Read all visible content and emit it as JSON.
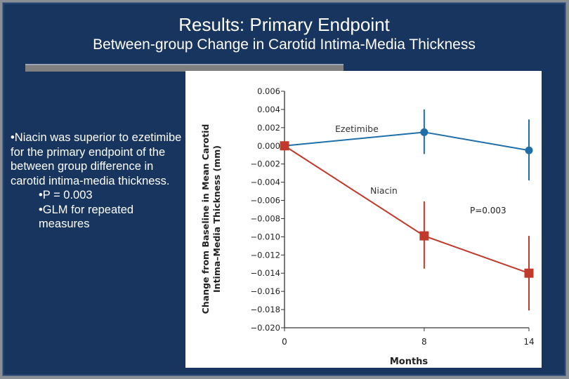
{
  "slide": {
    "title": "Results: Primary Endpoint",
    "subtitle": "Between-group Change in Carotid Intima-Media Thickness",
    "bullets": [
      "•Niacin was superior to ezetimibe for the primary endpoint of the between group difference in carotid intima-media thickness."
    ],
    "sub_bullets": [
      "•P = 0.003",
      "•GLM for repeated measures"
    ]
  },
  "chart_data": {
    "type": "line",
    "title": "",
    "xlabel": "Months",
    "ylabel_lines": [
      "Change from Baseline in Mean Carotid",
      "Intima–Media Thickness (mm)"
    ],
    "x": [
      0,
      8,
      14
    ],
    "x_ticks": [
      "0",
      "8",
      "14"
    ],
    "ylim": [
      -0.02,
      0.006
    ],
    "y_ticks": [
      "0.006",
      "0.004",
      "0.002",
      "0.000",
      "−0.002",
      "−0.004",
      "−0.006",
      "−0.008",
      "−0.010",
      "−0.012",
      "−0.014",
      "−0.016",
      "−0.018",
      "−0.020"
    ],
    "y_tick_values": [
      0.006,
      0.004,
      0.002,
      0,
      -0.002,
      -0.004,
      -0.006,
      -0.008,
      -0.01,
      -0.012,
      -0.014,
      -0.016,
      -0.018,
      -0.02
    ],
    "series": [
      {
        "name": "Ezetimibe",
        "color": "#1f6fa8",
        "marker": "circle",
        "values": [
          0.0,
          0.0015,
          -0.0005
        ],
        "err_high": [
          0.0,
          0.004,
          0.0029
        ],
        "err_low": [
          0.0,
          -0.0009,
          -0.0038
        ]
      },
      {
        "name": "Niacin",
        "color": "#c0392b",
        "marker": "square",
        "values": [
          0.0,
          -0.0099,
          -0.014
        ],
        "err_high": [
          0.0,
          -0.0061,
          -0.0099
        ],
        "err_low": [
          0.0,
          -0.0135,
          -0.0181
        ]
      }
    ],
    "annotation": "P=0.003",
    "grid": false
  }
}
